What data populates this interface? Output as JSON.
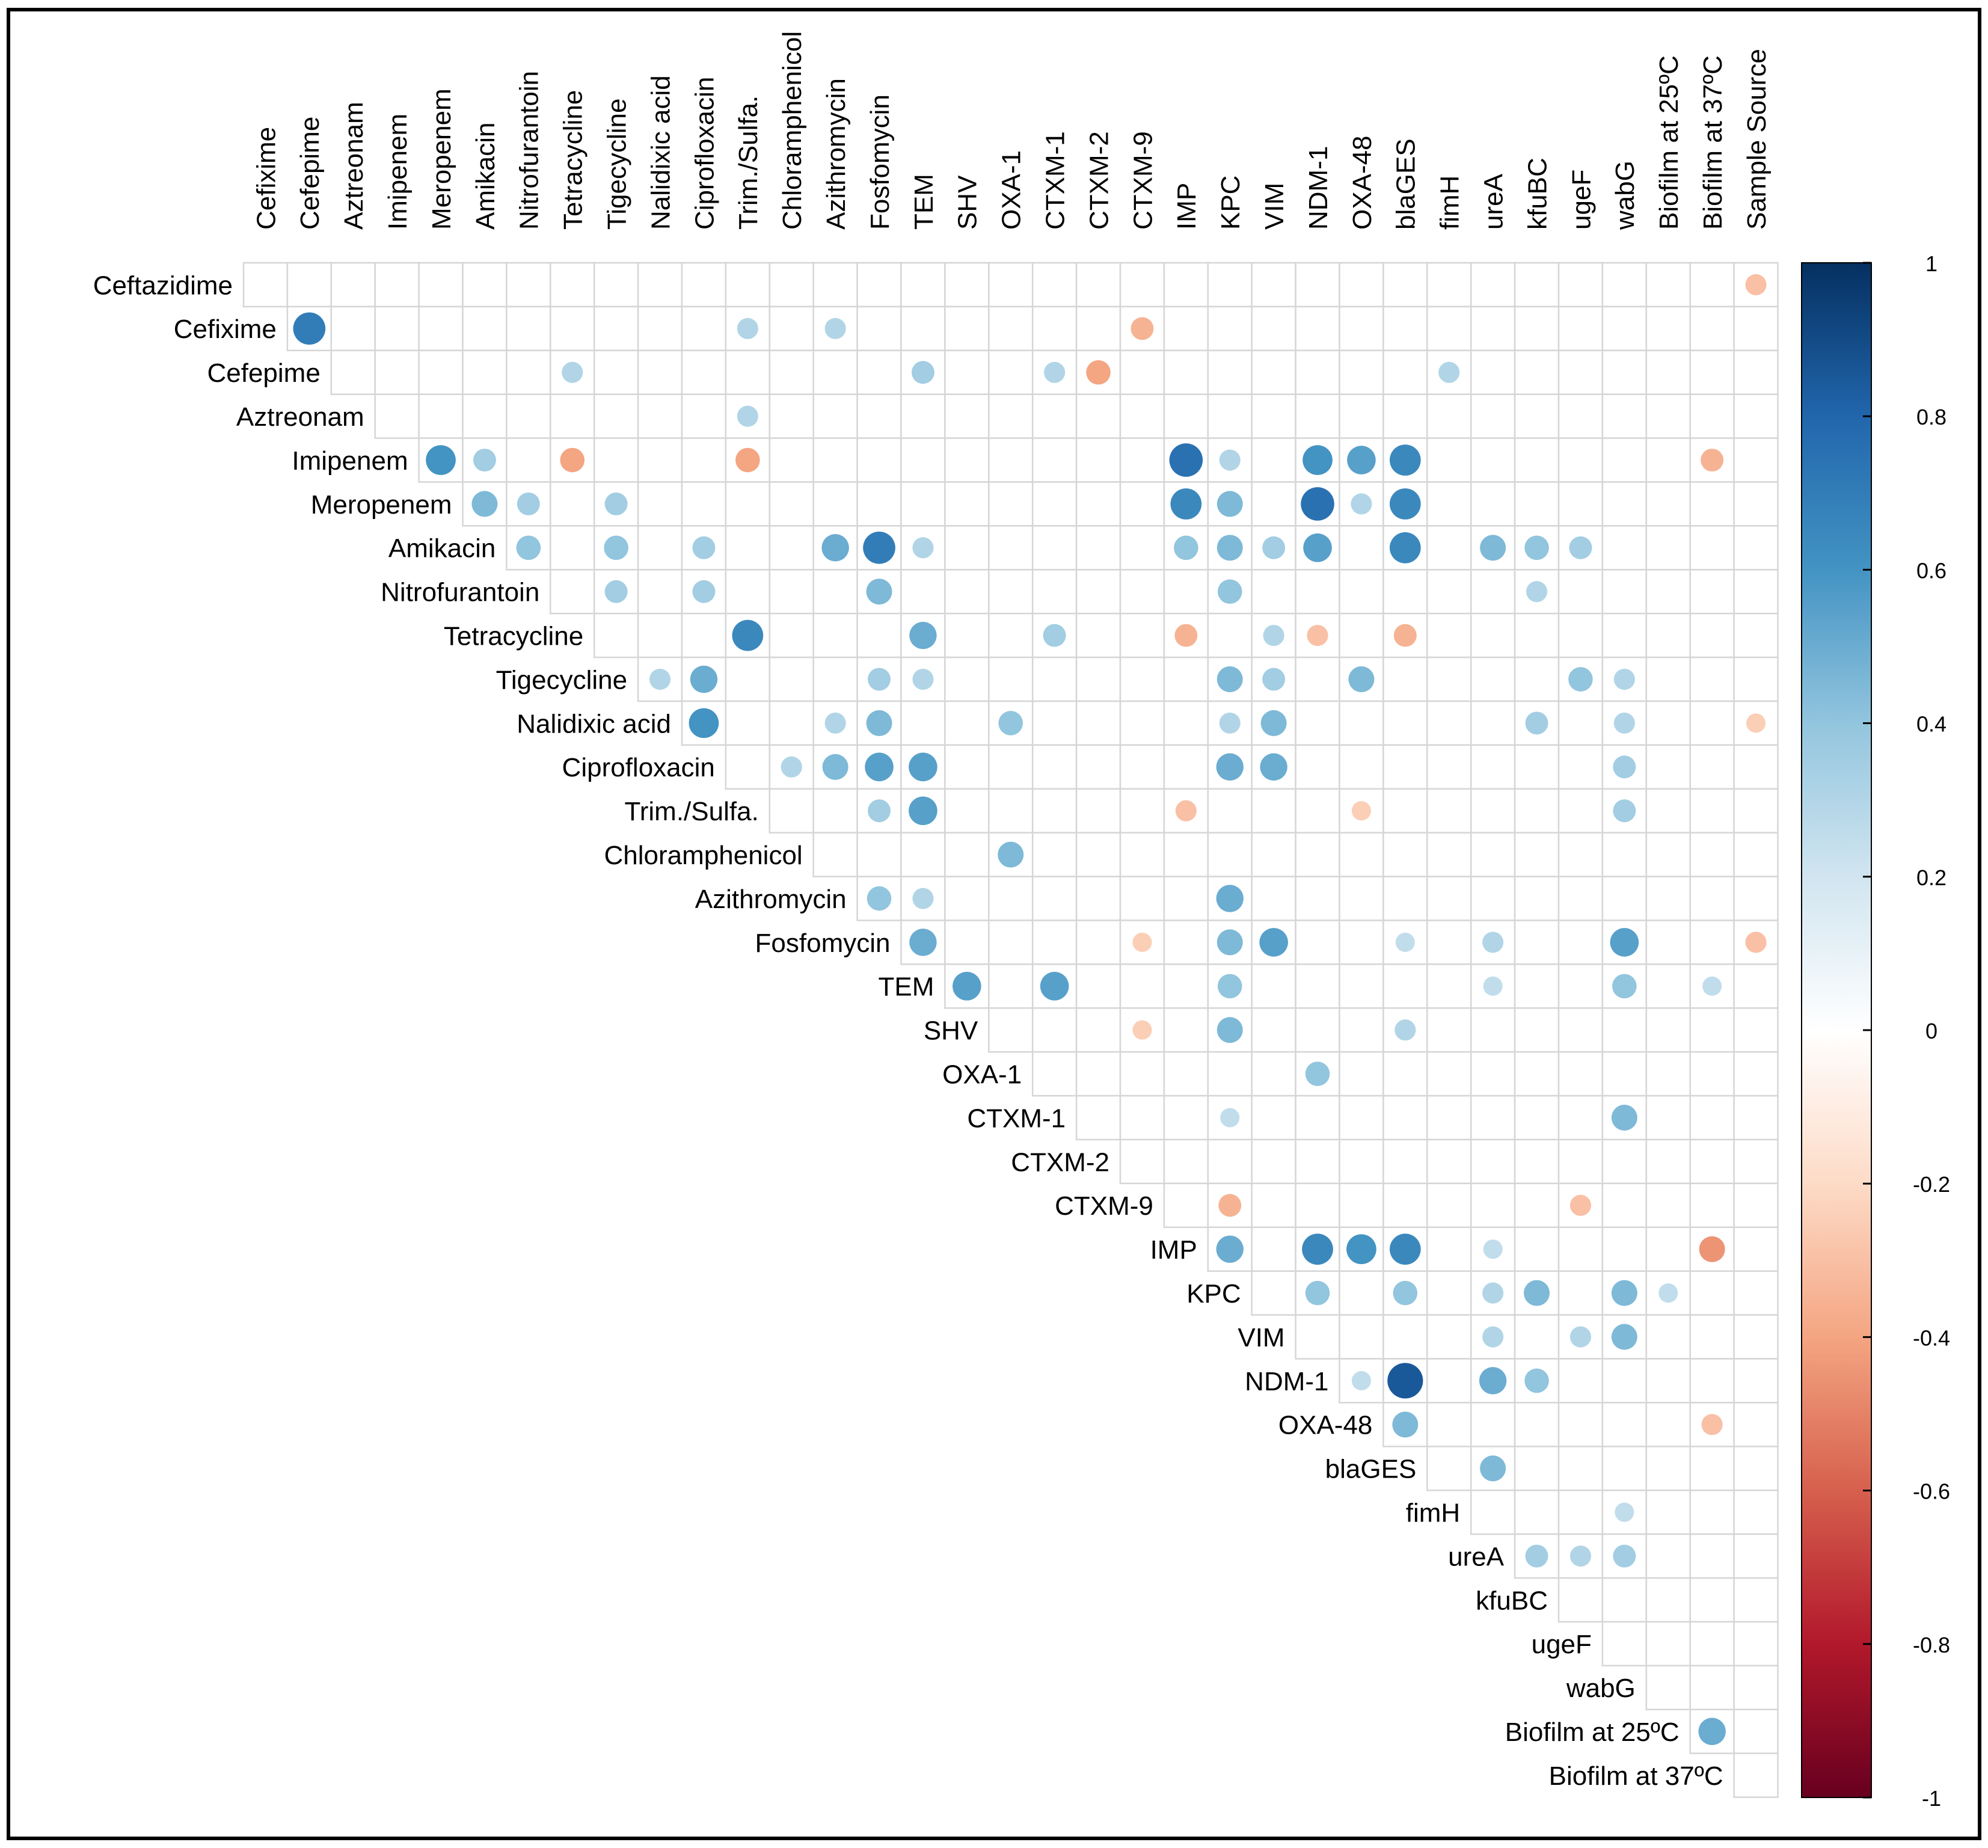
{
  "chart_data": {
    "type": "heatmap",
    "subtype": "correlation-circles-upper-triangle",
    "title": "",
    "row_labels": [
      "Ceftazidime",
      "Cefixime",
      "Cefepime",
      "Aztreonam",
      "Imipenem",
      "Meropenem",
      "Amikacin",
      "Nitrofurantoin",
      "Tetracycline",
      "Tigecycline",
      "Nalidixic acid",
      "Ciprofloxacin",
      "Trim./Sulfa.",
      "Chloramphenicol",
      "Azithromycin",
      "Fosfomycin",
      "TEM",
      "SHV",
      "OXA-1",
      "CTXM-1",
      "CTXM-2",
      "CTXM-9",
      "IMP",
      "KPC",
      "VIM",
      "NDM-1",
      "OXA-48",
      "blaGES",
      "fimH",
      "ureA",
      "kfuBC",
      "ugeF",
      "wabG",
      "Biofilm at 25ºC",
      "Biofilm at 37ºC"
    ],
    "col_labels": [
      "Cefixime",
      "Cefepime",
      "Aztreonam",
      "Imipenem",
      "Meropenem",
      "Amikacin",
      "Nitrofurantoin",
      "Tetracycline",
      "Tigecycline",
      "Nalidixic acid",
      "Ciprofloxacin",
      "Trim./Sulfa.",
      "Chloramphenicol",
      "Azithromycin",
      "Fosfomycin",
      "TEM",
      "SHV",
      "OXA-1",
      "CTXM-1",
      "CTXM-2",
      "CTXM-9",
      "IMP",
      "KPC",
      "VIM",
      "NDM-1",
      "OXA-48",
      "blaGES",
      "fimH",
      "ureA",
      "kfuBC",
      "ugeF",
      "wabG",
      "Biofilm at 25ºC",
      "Biofilm at 37ºC",
      "Sample Source"
    ],
    "correlations": [
      {
        "row": "Ceftazidime",
        "col": "Sample Source",
        "r": -0.3
      },
      {
        "row": "Cefixime",
        "col": "Cefepime",
        "r": 0.7
      },
      {
        "row": "Cefixime",
        "col": "Trim./Sulfa.",
        "r": 0.3
      },
      {
        "row": "Cefixime",
        "col": "Azithromycin",
        "r": 0.3
      },
      {
        "row": "Cefixime",
        "col": "CTXM-9",
        "r": -0.35
      },
      {
        "row": "Cefepime",
        "col": "Tetracycline",
        "r": 0.3
      },
      {
        "row": "Cefepime",
        "col": "TEM",
        "r": 0.35
      },
      {
        "row": "Cefepime",
        "col": "CTXM-1",
        "r": 0.3
      },
      {
        "row": "Cefepime",
        "col": "CTXM-2",
        "r": -0.4
      },
      {
        "row": "Cefepime",
        "col": "fimH",
        "r": 0.3
      },
      {
        "row": "Aztreonam",
        "col": "Trim./Sulfa.",
        "r": 0.3
      },
      {
        "row": "Imipenem",
        "col": "Meropenem",
        "r": 0.6
      },
      {
        "row": "Imipenem",
        "col": "Amikacin",
        "r": 0.35
      },
      {
        "row": "Imipenem",
        "col": "Tetracycline",
        "r": -0.4
      },
      {
        "row": "Imipenem",
        "col": "Trim./Sulfa.",
        "r": -0.4
      },
      {
        "row": "Imipenem",
        "col": "IMP",
        "r": 0.75
      },
      {
        "row": "Imipenem",
        "col": "KPC",
        "r": 0.3
      },
      {
        "row": "Imipenem",
        "col": "NDM-1",
        "r": 0.6
      },
      {
        "row": "Imipenem",
        "col": "OXA-48",
        "r": 0.55
      },
      {
        "row": "Imipenem",
        "col": "blaGES",
        "r": 0.65
      },
      {
        "row": "Imipenem",
        "col": "Biofilm at 37ºC",
        "r": -0.35
      },
      {
        "row": "Meropenem",
        "col": "Amikacin",
        "r": 0.45
      },
      {
        "row": "Meropenem",
        "col": "Nitrofurantoin",
        "r": 0.35
      },
      {
        "row": "Meropenem",
        "col": "Tigecycline",
        "r": 0.35
      },
      {
        "row": "Meropenem",
        "col": "IMP",
        "r": 0.65
      },
      {
        "row": "Meropenem",
        "col": "KPC",
        "r": 0.45
      },
      {
        "row": "Meropenem",
        "col": "NDM-1",
        "r": 0.75
      },
      {
        "row": "Meropenem",
        "col": "OXA-48",
        "r": 0.3
      },
      {
        "row": "Meropenem",
        "col": "blaGES",
        "r": 0.65
      },
      {
        "row": "Amikacin",
        "col": "Nitrofurantoin",
        "r": 0.4
      },
      {
        "row": "Amikacin",
        "col": "Tigecycline",
        "r": 0.4
      },
      {
        "row": "Amikacin",
        "col": "Ciprofloxacin",
        "r": 0.35
      },
      {
        "row": "Amikacin",
        "col": "Azithromycin",
        "r": 0.5
      },
      {
        "row": "Amikacin",
        "col": "Fosfomycin",
        "r": 0.7
      },
      {
        "row": "Amikacin",
        "col": "TEM",
        "r": 0.3
      },
      {
        "row": "Amikacin",
        "col": "IMP",
        "r": 0.4
      },
      {
        "row": "Amikacin",
        "col": "KPC",
        "r": 0.45
      },
      {
        "row": "Amikacin",
        "col": "VIM",
        "r": 0.35
      },
      {
        "row": "Amikacin",
        "col": "NDM-1",
        "r": 0.55
      },
      {
        "row": "Amikacin",
        "col": "blaGES",
        "r": 0.65
      },
      {
        "row": "Amikacin",
        "col": "ureA",
        "r": 0.45
      },
      {
        "row": "Amikacin",
        "col": "kfuBC",
        "r": 0.4
      },
      {
        "row": "Amikacin",
        "col": "ugeF",
        "r": 0.35
      },
      {
        "row": "Nitrofurantoin",
        "col": "Tigecycline",
        "r": 0.35
      },
      {
        "row": "Nitrofurantoin",
        "col": "Ciprofloxacin",
        "r": 0.35
      },
      {
        "row": "Nitrofurantoin",
        "col": "Fosfomycin",
        "r": 0.45
      },
      {
        "row": "Nitrofurantoin",
        "col": "KPC",
        "r": 0.4
      },
      {
        "row": "Nitrofurantoin",
        "col": "kfuBC",
        "r": 0.3
      },
      {
        "row": "Tetracycline",
        "col": "Trim./Sulfa.",
        "r": 0.65
      },
      {
        "row": "Tetracycline",
        "col": "TEM",
        "r": 0.5
      },
      {
        "row": "Tetracycline",
        "col": "CTXM-1",
        "r": 0.35
      },
      {
        "row": "Tetracycline",
        "col": "IMP",
        "r": -0.35
      },
      {
        "row": "Tetracycline",
        "col": "VIM",
        "r": 0.3
      },
      {
        "row": "Tetracycline",
        "col": "NDM-1",
        "r": -0.3
      },
      {
        "row": "Tetracycline",
        "col": "blaGES",
        "r": -0.35
      },
      {
        "row": "Tigecycline",
        "col": "Nalidixic acid",
        "r": 0.3
      },
      {
        "row": "Tigecycline",
        "col": "Ciprofloxacin",
        "r": 0.5
      },
      {
        "row": "Tigecycline",
        "col": "Fosfomycin",
        "r": 0.35
      },
      {
        "row": "Tigecycline",
        "col": "TEM",
        "r": 0.3
      },
      {
        "row": "Tigecycline",
        "col": "KPC",
        "r": 0.45
      },
      {
        "row": "Tigecycline",
        "col": "VIM",
        "r": 0.35
      },
      {
        "row": "Tigecycline",
        "col": "OXA-48",
        "r": 0.45
      },
      {
        "row": "Tigecycline",
        "col": "ugeF",
        "r": 0.4
      },
      {
        "row": "Tigecycline",
        "col": "wabG",
        "r": 0.3
      },
      {
        "row": "Nalidixic acid",
        "col": "Ciprofloxacin",
        "r": 0.6
      },
      {
        "row": "Nalidixic acid",
        "col": "Azithromycin",
        "r": 0.3
      },
      {
        "row": "Nalidixic acid",
        "col": "Fosfomycin",
        "r": 0.45
      },
      {
        "row": "Nalidixic acid",
        "col": "OXA-1",
        "r": 0.4
      },
      {
        "row": "Nalidixic acid",
        "col": "KPC",
        "r": 0.3
      },
      {
        "row": "Nalidixic acid",
        "col": "VIM",
        "r": 0.45
      },
      {
        "row": "Nalidixic acid",
        "col": "kfuBC",
        "r": 0.35
      },
      {
        "row": "Nalidixic acid",
        "col": "wabG",
        "r": 0.3
      },
      {
        "row": "Nalidixic acid",
        "col": "Sample Source",
        "r": -0.25
      },
      {
        "row": "Ciprofloxacin",
        "col": "Chloramphenicol",
        "r": 0.3
      },
      {
        "row": "Ciprofloxacin",
        "col": "Azithromycin",
        "r": 0.45
      },
      {
        "row": "Ciprofloxacin",
        "col": "Fosfomycin",
        "r": 0.55
      },
      {
        "row": "Ciprofloxacin",
        "col": "TEM",
        "r": 0.55
      },
      {
        "row": "Ciprofloxacin",
        "col": "KPC",
        "r": 0.5
      },
      {
        "row": "Ciprofloxacin",
        "col": "VIM",
        "r": 0.5
      },
      {
        "row": "Ciprofloxacin",
        "col": "wabG",
        "r": 0.35
      },
      {
        "row": "Trim./Sulfa.",
        "col": "Fosfomycin",
        "r": 0.35
      },
      {
        "row": "Trim./Sulfa.",
        "col": "TEM",
        "r": 0.55
      },
      {
        "row": "Trim./Sulfa.",
        "col": "IMP",
        "r": -0.3
      },
      {
        "row": "Trim./Sulfa.",
        "col": "OXA-48",
        "r": -0.25
      },
      {
        "row": "Trim./Sulfa.",
        "col": "wabG",
        "r": 0.35
      },
      {
        "row": "Chloramphenicol",
        "col": "OXA-1",
        "r": 0.45
      },
      {
        "row": "Azithromycin",
        "col": "Fosfomycin",
        "r": 0.4
      },
      {
        "row": "Azithromycin",
        "col": "TEM",
        "r": 0.3
      },
      {
        "row": "Azithromycin",
        "col": "KPC",
        "r": 0.5
      },
      {
        "row": "Fosfomycin",
        "col": "TEM",
        "r": 0.5
      },
      {
        "row": "Fosfomycin",
        "col": "CTXM-9",
        "r": -0.25
      },
      {
        "row": "Fosfomycin",
        "col": "KPC",
        "r": 0.45
      },
      {
        "row": "Fosfomycin",
        "col": "VIM",
        "r": 0.55
      },
      {
        "row": "Fosfomycin",
        "col": "blaGES",
        "r": 0.25
      },
      {
        "row": "Fosfomycin",
        "col": "ureA",
        "r": 0.3
      },
      {
        "row": "Fosfomycin",
        "col": "wabG",
        "r": 0.55
      },
      {
        "row": "Fosfomycin",
        "col": "Sample Source",
        "r": -0.3
      },
      {
        "row": "TEM",
        "col": "SHV",
        "r": 0.55
      },
      {
        "row": "TEM",
        "col": "CTXM-1",
        "r": 0.55
      },
      {
        "row": "TEM",
        "col": "KPC",
        "r": 0.4
      },
      {
        "row": "TEM",
        "col": "ureA",
        "r": 0.25
      },
      {
        "row": "TEM",
        "col": "wabG",
        "r": 0.4
      },
      {
        "row": "TEM",
        "col": "Biofilm at 37ºC",
        "r": 0.25
      },
      {
        "row": "SHV",
        "col": "CTXM-9",
        "r": -0.25
      },
      {
        "row": "SHV",
        "col": "KPC",
        "r": 0.45
      },
      {
        "row": "SHV",
        "col": "blaGES",
        "r": 0.3
      },
      {
        "row": "OXA-1",
        "col": "NDM-1",
        "r": 0.4
      },
      {
        "row": "CTXM-1",
        "col": "KPC",
        "r": 0.25
      },
      {
        "row": "CTXM-1",
        "col": "wabG",
        "r": 0.45
      },
      {
        "row": "CTXM-9",
        "col": "KPC",
        "r": -0.35
      },
      {
        "row": "CTXM-9",
        "col": "ugeF",
        "r": -0.3
      },
      {
        "row": "IMP",
        "col": "KPC",
        "r": 0.5
      },
      {
        "row": "IMP",
        "col": "NDM-1",
        "r": 0.65
      },
      {
        "row": "IMP",
        "col": "OXA-48",
        "r": 0.6
      },
      {
        "row": "IMP",
        "col": "blaGES",
        "r": 0.65
      },
      {
        "row": "IMP",
        "col": "ureA",
        "r": 0.25
      },
      {
        "row": "IMP",
        "col": "Biofilm at 37ºC",
        "r": -0.45
      },
      {
        "row": "KPC",
        "col": "NDM-1",
        "r": 0.4
      },
      {
        "row": "KPC",
        "col": "blaGES",
        "r": 0.4
      },
      {
        "row": "KPC",
        "col": "ureA",
        "r": 0.3
      },
      {
        "row": "KPC",
        "col": "kfuBC",
        "r": 0.45
      },
      {
        "row": "KPC",
        "col": "wabG",
        "r": 0.45
      },
      {
        "row": "KPC",
        "col": "Biofilm at 25ºC",
        "r": 0.25
      },
      {
        "row": "VIM",
        "col": "ureA",
        "r": 0.3
      },
      {
        "row": "VIM",
        "col": "ugeF",
        "r": 0.3
      },
      {
        "row": "VIM",
        "col": "wabG",
        "r": 0.45
      },
      {
        "row": "NDM-1",
        "col": "OXA-48",
        "r": 0.25
      },
      {
        "row": "NDM-1",
        "col": "blaGES",
        "r": 0.85
      },
      {
        "row": "NDM-1",
        "col": "ureA",
        "r": 0.5
      },
      {
        "row": "NDM-1",
        "col": "kfuBC",
        "r": 0.4
      },
      {
        "row": "OXA-48",
        "col": "blaGES",
        "r": 0.45
      },
      {
        "row": "OXA-48",
        "col": "Biofilm at 37ºC",
        "r": -0.3
      },
      {
        "row": "blaGES",
        "col": "ureA",
        "r": 0.45
      },
      {
        "row": "fimH",
        "col": "wabG",
        "r": 0.25
      },
      {
        "row": "ureA",
        "col": "kfuBC",
        "r": 0.35
      },
      {
        "row": "ureA",
        "col": "ugeF",
        "r": 0.3
      },
      {
        "row": "ureA",
        "col": "wabG",
        "r": 0.35
      },
      {
        "row": "Biofilm at 25ºC",
        "col": "Biofilm at 37ºC",
        "r": 0.5
      }
    ],
    "colorbar": {
      "range": [
        -1,
        1
      ],
      "ticks": [
        "1",
        "0.8",
        "0.6",
        "0.4",
        "0.2",
        "0",
        "-0.2",
        "-0.4",
        "-0.6",
        "-0.8",
        "-1"
      ],
      "colors": [
        "#67001f",
        "#b2182b",
        "#d6604d",
        "#f4a582",
        "#fddbc7",
        "#ffffff",
        "#d1e5f0",
        "#92c5de",
        "#4393c3",
        "#2166ac",
        "#053061"
      ]
    },
    "xlabel": "",
    "ylabel": "",
    "legend": "right"
  }
}
